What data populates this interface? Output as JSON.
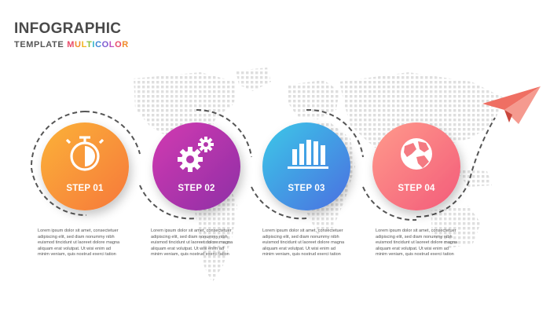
{
  "header": {
    "title": "INFOGRAPHIC",
    "subtitle_prefix": "TEMPLATE",
    "subtitle_accent": "MULTICOLOR",
    "accent_letters": [
      "#e84b6a",
      "#f08a2b",
      "#f2b51d",
      "#8cbf3f",
      "#2fb5c8",
      "#3b86d6",
      "#7d5bd1",
      "#c04fbf",
      "#e84b6a",
      "#f08a2b"
    ]
  },
  "steps": [
    {
      "label": "STEP 01",
      "icon": "stopwatch-icon",
      "gradient": [
        "#fbb239",
        "#f6783a"
      ],
      "description": [
        "Lorem ipsum dolor sit amet, consectetuer",
        "adipiscing elit, sed diam nonummy nibh",
        "euismod tincidunt ut laoreet dolore magna",
        "aliquam erat volutpat. Ut wisi enim ad",
        "minim veniam, quis nostrud exerci tation"
      ]
    },
    {
      "label": "STEP 02",
      "icon": "gears-icon",
      "gradient": [
        "#d23ab1",
        "#8e2fa6"
      ],
      "description": [
        "Lorem ipsum dolor sit amet, consectetuer",
        "adipiscing elit, sed diam nonummy nibh",
        "euismod tincidunt ut laoreet dolore magna",
        "aliquam erat volutpat. Ut wisi enim ad",
        "minim veniam, quis nostrud exerci tation"
      ]
    },
    {
      "label": "STEP 03",
      "icon": "bar-chart-icon",
      "gradient": [
        "#3cc8e8",
        "#4a6fe0"
      ],
      "description": [
        "Lorem ipsum dolor sit amet, consectetuer",
        "adipiscing elit, sed diam nonummy nibh",
        "euismod tincidunt ut laoreet dolore magna",
        "aliquam erat volutpat. Ut wisi enim ad",
        "minim veniam, quis nostrud exerci tation"
      ]
    },
    {
      "label": "STEP 04",
      "icon": "globe-icon",
      "gradient": [
        "#ff9a8b",
        "#f35b7a"
      ],
      "description": [
        "Lorem ipsum dolor sit amet, consectetuer",
        "adipiscing elit, sed diam nonummy nibh",
        "euismod tincidunt ut laoreet dolore magna",
        "aliquam erat volutpat. Ut wisi enim ad",
        "minim veniam, quis nostrud exerci tation"
      ]
    }
  ],
  "decor": {
    "plane_icon": "paper-plane-icon",
    "map": "world-map-dots",
    "plane_color": "#ef6f63",
    "path_color": "#555555"
  }
}
